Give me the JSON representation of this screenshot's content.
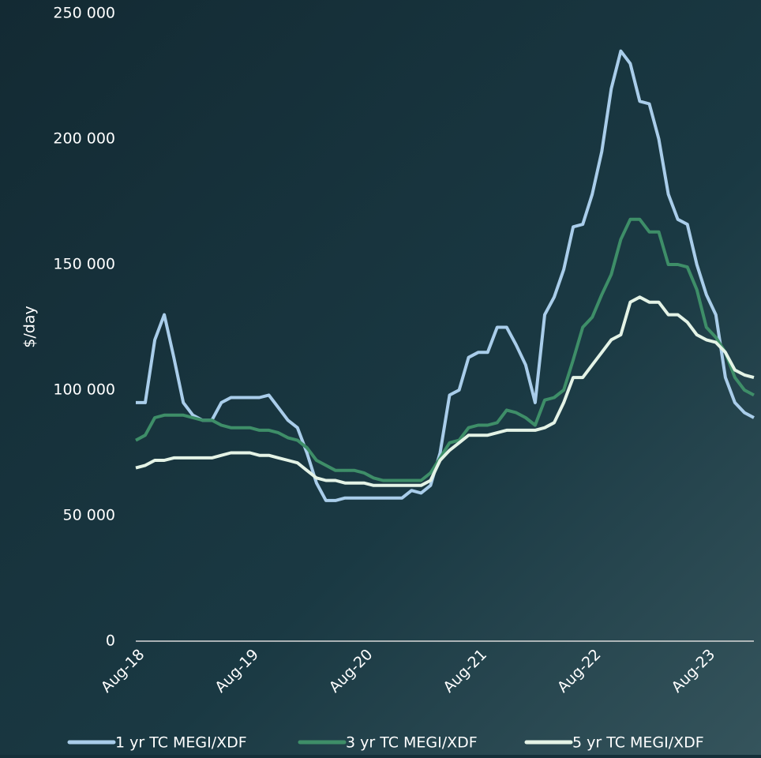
{
  "chart_data": {
    "type": "line",
    "y_label": "$/day",
    "categories": [
      "Aug-18",
      null,
      null,
      null,
      null,
      null,
      null,
      null,
      null,
      null,
      null,
      null,
      "Aug-19",
      null,
      null,
      null,
      null,
      null,
      null,
      null,
      null,
      null,
      null,
      null,
      "Aug-20",
      null,
      null,
      null,
      null,
      null,
      null,
      null,
      null,
      null,
      null,
      null,
      "Aug-21",
      null,
      null,
      null,
      null,
      null,
      null,
      null,
      null,
      null,
      null,
      null,
      "Aug-22",
      null,
      null,
      null,
      null,
      null,
      null,
      null,
      null,
      null,
      null,
      null,
      "Aug-23",
      null,
      null,
      null,
      null,
      null
    ],
    "series": [
      {
        "name": "1 yr TC MEGI/XDF",
        "color": "#a9cdea",
        "values": [
          95000,
          95000,
          120000,
          130000,
          113000,
          95000,
          90000,
          88000,
          88000,
          95000,
          97000,
          97000,
          97000,
          97000,
          98000,
          93000,
          88000,
          85000,
          75000,
          63000,
          56000,
          56000,
          57000,
          57000,
          57000,
          57000,
          57000,
          57000,
          57000,
          60000,
          59000,
          62000,
          75000,
          98000,
          100000,
          113000,
          115000,
          115000,
          125000,
          125000,
          118000,
          110000,
          95000,
          130000,
          137000,
          148000,
          165000,
          166000,
          178000,
          195000,
          220000,
          235000,
          230000,
          215000,
          214000,
          200000,
          178000,
          168000,
          166000,
          150000,
          138000,
          130000,
          105000,
          95000,
          91000,
          89000
        ]
      },
      {
        "name": "3 yr TC MEGI/XDF",
        "color": "#3e8e68",
        "values": [
          80000,
          82000,
          89000,
          90000,
          90000,
          90000,
          89000,
          88000,
          88000,
          86000,
          85000,
          85000,
          85000,
          84000,
          84000,
          83000,
          81000,
          80000,
          77000,
          72000,
          70000,
          68000,
          68000,
          68000,
          67000,
          65000,
          64000,
          64000,
          64000,
          64000,
          64000,
          67000,
          73000,
          79000,
          80000,
          85000,
          86000,
          86000,
          87000,
          92000,
          91000,
          89000,
          86000,
          96000,
          97000,
          100000,
          112000,
          125000,
          129000,
          138000,
          146000,
          160000,
          168000,
          168000,
          163000,
          163000,
          150000,
          150000,
          149000,
          140000,
          125000,
          121000,
          115000,
          105000,
          100000,
          98000
        ]
      },
      {
        "name": "5 yr TC MEGI/XDF",
        "color": "#e4f3e6",
        "values": [
          69000,
          70000,
          72000,
          72000,
          73000,
          73000,
          73000,
          73000,
          73000,
          74000,
          75000,
          75000,
          75000,
          74000,
          74000,
          73000,
          72000,
          71000,
          68000,
          65000,
          64000,
          64000,
          63000,
          63000,
          63000,
          62000,
          62000,
          62000,
          62000,
          62000,
          62000,
          64000,
          72000,
          76000,
          79000,
          82000,
          82000,
          82000,
          83000,
          84000,
          84000,
          84000,
          84000,
          85000,
          87000,
          95000,
          105000,
          105000,
          110000,
          115000,
          120000,
          122000,
          135000,
          137000,
          135000,
          135000,
          130000,
          130000,
          127000,
          122000,
          120000,
          119000,
          115000,
          108000,
          106000,
          105000
        ]
      }
    ],
    "ylim": [
      0,
      250000
    ],
    "yticks": [
      0,
      {
        "value": 50000,
        "label": "50 000"
      },
      {
        "value": 100000,
        "label": "100 000"
      },
      {
        "value": 150000,
        "label": "150 000"
      },
      {
        "value": 200000,
        "label": "200 000"
      },
      {
        "value": 250000,
        "label": "250 000"
      }
    ],
    "legend": "bottom"
  }
}
